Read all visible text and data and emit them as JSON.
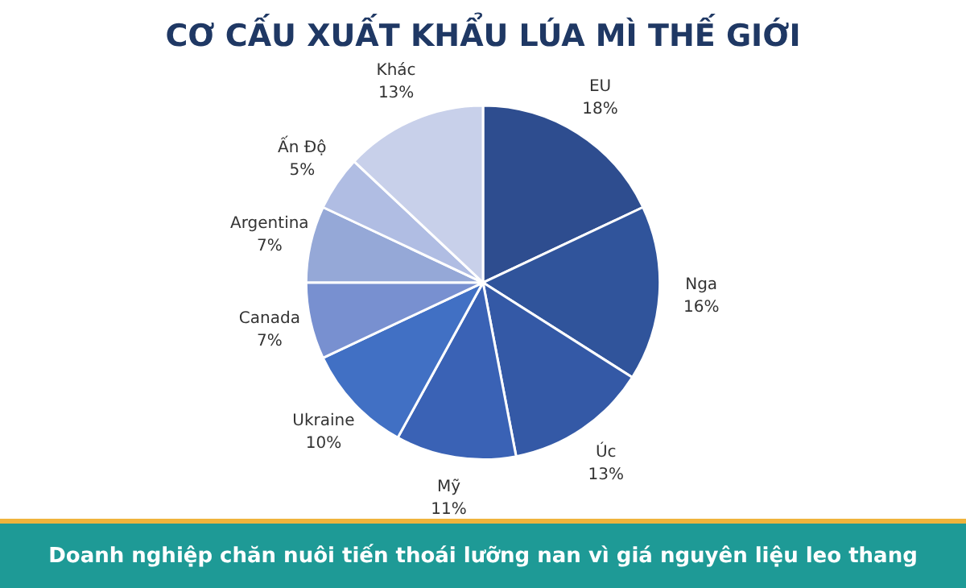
{
  "chart_data": {
    "type": "pie",
    "title": "CƠ CẤU XUẤT KHẨU LÚA MÌ THẾ GIỚI",
    "categories": [
      "EU",
      "Nga",
      "Úc",
      "Mỹ",
      "Ukraine",
      "Canada",
      "Argentina",
      "Ấn Độ",
      "Khác"
    ],
    "values": [
      18,
      16,
      13,
      11,
      10,
      7,
      7,
      5,
      13
    ],
    "value_labels": [
      "18%",
      "16%",
      "13%",
      "11%",
      "10%",
      "7%",
      "7%",
      "5%",
      "13%"
    ],
    "colors": [
      "#2e4d8f",
      "#30549b",
      "#3459a6",
      "#3a62b5",
      "#4170c4",
      "#7890d0",
      "#95a8d7",
      "#b0bde3",
      "#c8d0ea"
    ],
    "annotations": [
      "Doanh nghiệp chăn nuôi tiến thoái lưỡng nan vì giá nguyên liệu leo thang"
    ]
  }
}
